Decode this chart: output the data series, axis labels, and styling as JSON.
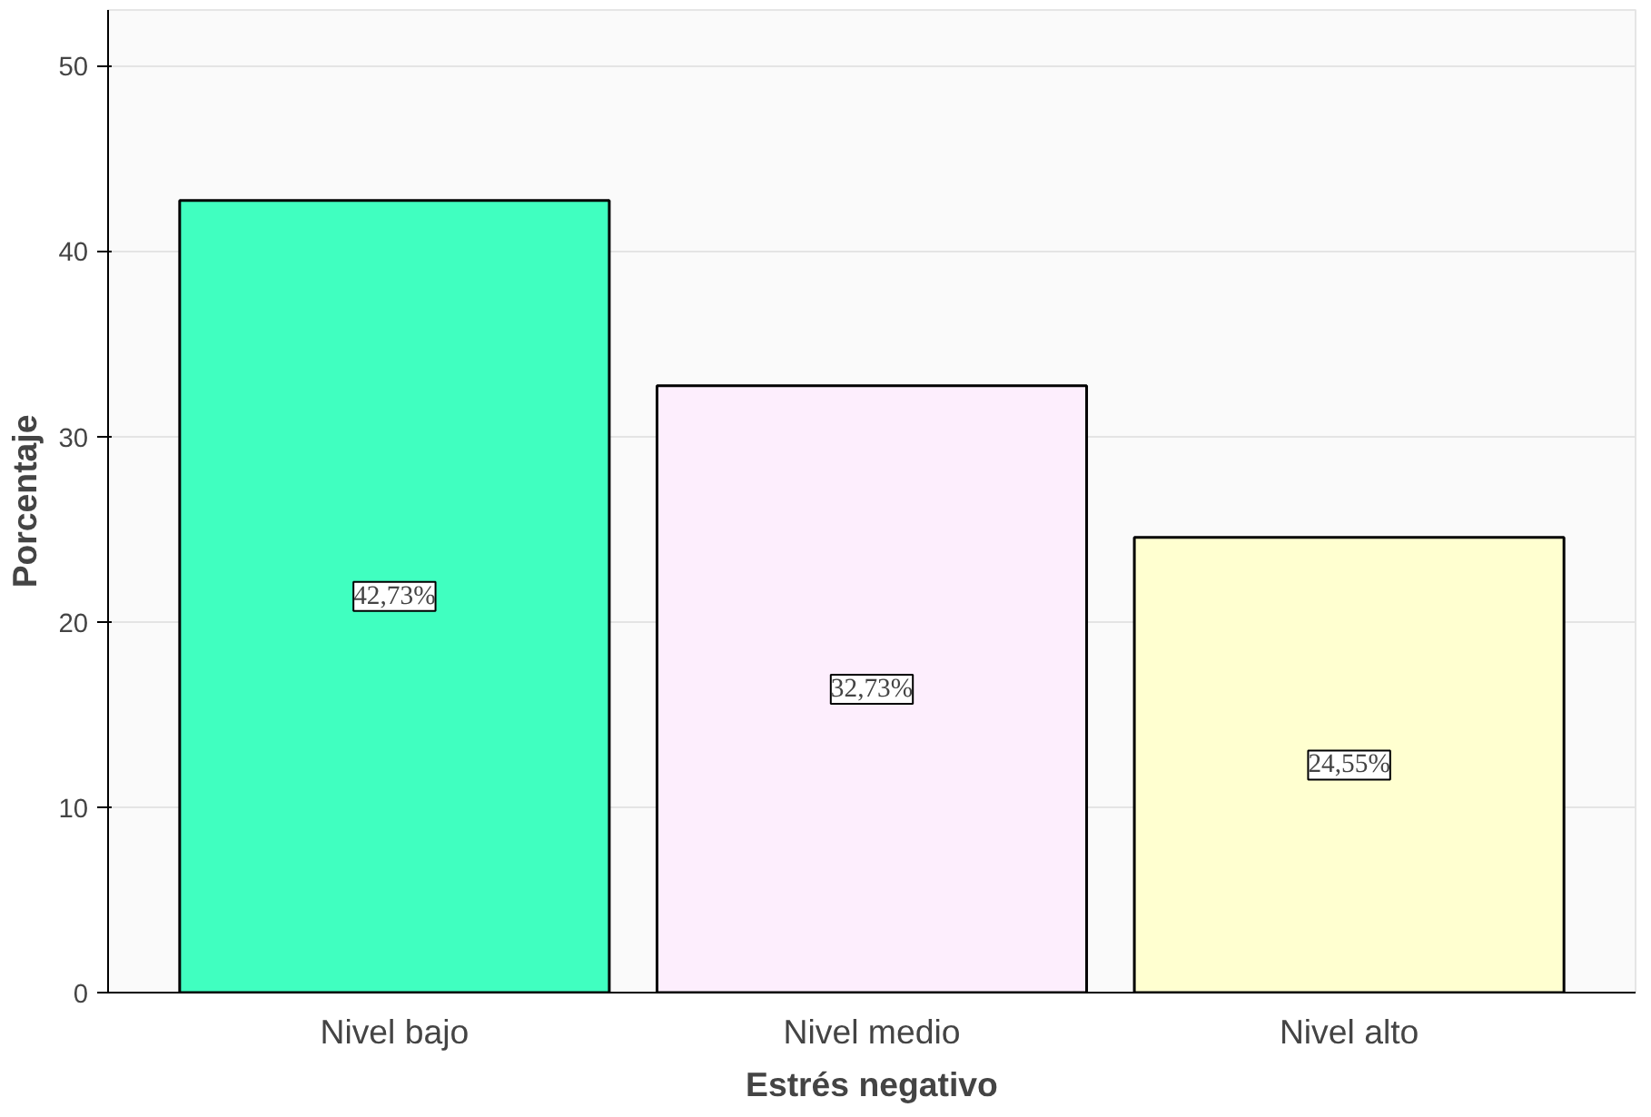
{
  "chart_data": {
    "type": "bar",
    "xlabel": "Estrés negativo",
    "ylabel": "Porcentaje",
    "categories": [
      "Nivel bajo",
      "Nivel medio",
      "Nivel alto"
    ],
    "values": [
      42.73,
      32.73,
      24.55
    ],
    "colors": [
      "#40ffc0",
      "#fdeefd",
      "#ffffd0"
    ],
    "value_labels": [
      "42,73%",
      "32,73%",
      "24,55%"
    ],
    "ylim": [
      0,
      53
    ],
    "yticks": [
      0,
      10,
      20,
      30,
      40,
      50
    ],
    "grid": "y"
  }
}
